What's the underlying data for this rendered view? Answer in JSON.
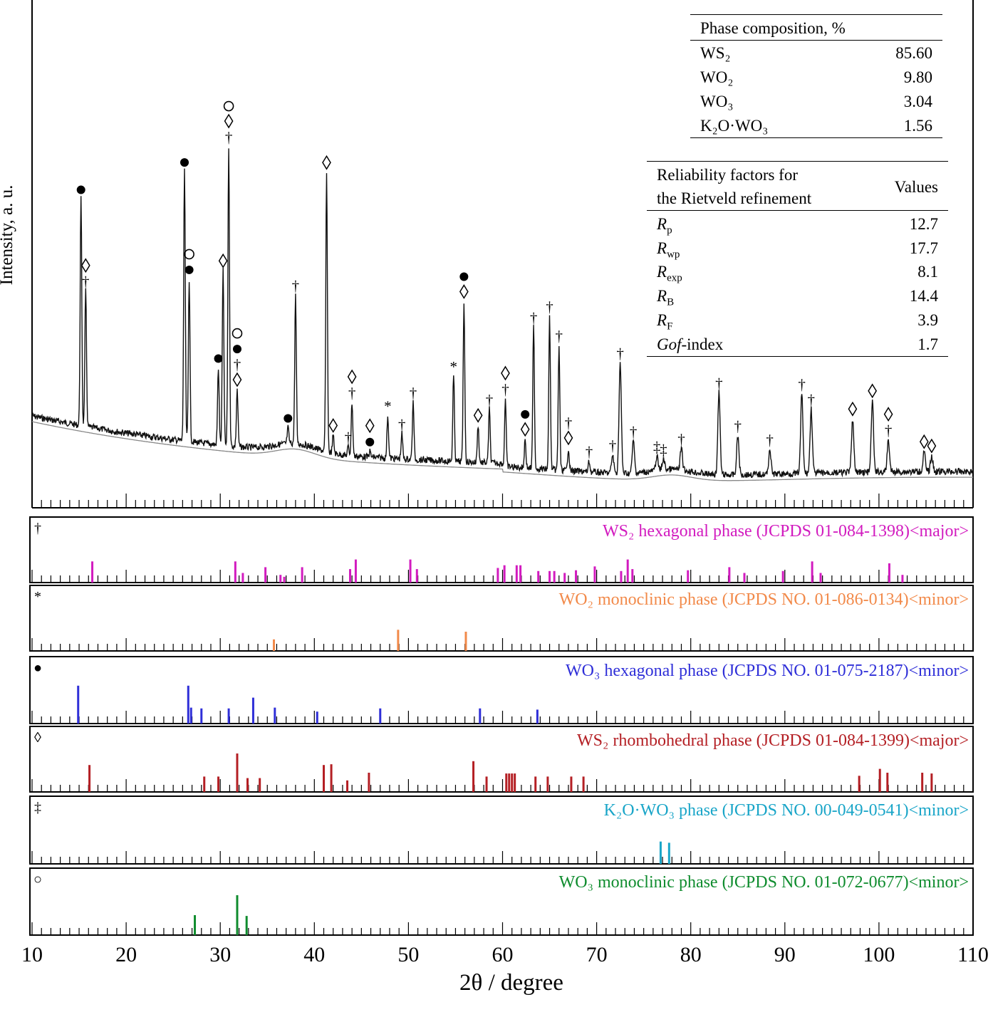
{
  "chart_data": {
    "type": "xrd-pattern",
    "xlabel": "2θ / degree",
    "ylabel": "Intensity, a. u.",
    "xlim": [
      10,
      110
    ],
    "xticks": [
      "10",
      "20",
      "30",
      "40",
      "50",
      "60",
      "70",
      "80",
      "90",
      "100",
      "110"
    ],
    "main_peaks": [
      {
        "x": 15.2,
        "h": 318,
        "markers": [
          "●"
        ]
      },
      {
        "x": 15.7,
        "h": 190,
        "markers": [
          "◊",
          "†"
        ]
      },
      {
        "x": 26.2,
        "h": 378,
        "markers": [
          "●"
        ]
      },
      {
        "x": 26.7,
        "h": 228,
        "markers": [
          "○",
          "●"
        ]
      },
      {
        "x": 29.8,
        "h": 108,
        "markers": [
          "●"
        ]
      },
      {
        "x": 30.3,
        "h": 245,
        "markers": [
          "◊"
        ]
      },
      {
        "x": 30.9,
        "h": 420,
        "markers": [
          "○",
          "◊",
          "†"
        ]
      },
      {
        "x": 31.8,
        "h": 80,
        "markers": [
          "○",
          "●",
          "†",
          "◊"
        ]
      },
      {
        "x": 37.2,
        "h": 22,
        "markers": [
          "●"
        ]
      },
      {
        "x": 38.0,
        "h": 208,
        "markers": [
          "†"
        ]
      },
      {
        "x": 41.3,
        "h": 392,
        "markers": [
          "◊"
        ]
      },
      {
        "x": 42.0,
        "h": 25,
        "markers": [
          "◊"
        ]
      },
      {
        "x": 43.6,
        "h": 12,
        "markers": [
          "†"
        ]
      },
      {
        "x": 44.0,
        "h": 75,
        "markers": [
          "◊",
          "†"
        ]
      },
      {
        "x": 45.9,
        "h": 8,
        "markers": [
          "◊",
          "●"
        ]
      },
      {
        "x": 47.8,
        "h": 60,
        "markers": [
          "*"
        ]
      },
      {
        "x": 49.3,
        "h": 35,
        "markers": [
          "†"
        ]
      },
      {
        "x": 50.5,
        "h": 80,
        "markers": [
          "†"
        ]
      },
      {
        "x": 54.8,
        "h": 120,
        "markers": [
          "*"
        ]
      },
      {
        "x": 55.9,
        "h": 225,
        "markers": [
          "●",
          "◊"
        ]
      },
      {
        "x": 57.4,
        "h": 52,
        "markers": [
          "◊"
        ]
      },
      {
        "x": 58.6,
        "h": 75,
        "markers": [
          "†"
        ]
      },
      {
        "x": 60.3,
        "h": 95,
        "markers": [
          "◊",
          "†"
        ]
      },
      {
        "x": 62.4,
        "h": 40,
        "markers": [
          "●",
          "◊"
        ]
      },
      {
        "x": 63.3,
        "h": 198,
        "markers": [
          "†"
        ]
      },
      {
        "x": 65.0,
        "h": 215,
        "markers": [
          "†"
        ]
      },
      {
        "x": 66.0,
        "h": 175,
        "markers": [
          "†"
        ]
      },
      {
        "x": 67.0,
        "h": 32,
        "markers": [
          "†",
          "◊"
        ]
      },
      {
        "x": 69.2,
        "h": 15,
        "markers": [
          "†"
        ]
      },
      {
        "x": 71.7,
        "h": 25,
        "markers": [
          "†"
        ]
      },
      {
        "x": 72.5,
        "h": 155,
        "markers": [
          "†"
        ]
      },
      {
        "x": 73.9,
        "h": 45,
        "markers": [
          "†"
        ]
      },
      {
        "x": 76.4,
        "h": 20,
        "markers": [
          "‡"
        ]
      },
      {
        "x": 77.1,
        "h": 15,
        "markers": [
          "‡"
        ]
      },
      {
        "x": 79.0,
        "h": 30,
        "markers": [
          "†"
        ]
      },
      {
        "x": 83.0,
        "h": 115,
        "markers": [
          "†"
        ]
      },
      {
        "x": 85.0,
        "h": 55,
        "markers": [
          "†"
        ]
      },
      {
        "x": 88.4,
        "h": 35,
        "markers": [
          "†"
        ]
      },
      {
        "x": 91.8,
        "h": 112,
        "markers": [
          "†"
        ]
      },
      {
        "x": 92.8,
        "h": 90,
        "markers": [
          "†"
        ]
      },
      {
        "x": 97.2,
        "h": 75,
        "markers": [
          "◊"
        ]
      },
      {
        "x": 99.3,
        "h": 100,
        "markers": [
          "◊"
        ]
      },
      {
        "x": 101.0,
        "h": 45,
        "markers": [
          "◊",
          "†"
        ]
      },
      {
        "x": 104.8,
        "h": 28,
        "markers": [
          "◊"
        ]
      },
      {
        "x": 105.6,
        "h": 22,
        "markers": [
          "◊"
        ]
      }
    ],
    "reference_panels": [
      {
        "symbol": "†",
        "label": "WS₂ hexagonal phase  (JCPDS 01-084-1398)<major>",
        "color": "#d21bbf",
        "lines": [
          [
            16.4,
            0.55
          ],
          [
            31.6,
            0.55
          ],
          [
            32.4,
            0.25
          ],
          [
            34.8,
            0.4
          ],
          [
            36.4,
            0.2
          ],
          [
            36.8,
            0.15
          ],
          [
            38.7,
            0.4
          ],
          [
            43.8,
            0.35
          ],
          [
            44.4,
            0.6
          ],
          [
            50.2,
            0.6
          ],
          [
            50.9,
            0.35
          ],
          [
            59.5,
            0.38
          ],
          [
            60.2,
            0.45
          ],
          [
            61.5,
            0.45
          ],
          [
            61.9,
            0.45
          ],
          [
            63.8,
            0.3
          ],
          [
            65.0,
            0.3
          ],
          [
            65.5,
            0.3
          ],
          [
            66.6,
            0.25
          ],
          [
            67.8,
            0.32
          ],
          [
            69.8,
            0.42
          ],
          [
            72.6,
            0.3
          ],
          [
            73.3,
            0.6
          ],
          [
            73.8,
            0.35
          ],
          [
            79.7,
            0.32
          ],
          [
            84.1,
            0.4
          ],
          [
            85.7,
            0.25
          ],
          [
            89.8,
            0.3
          ],
          [
            92.9,
            0.55
          ],
          [
            93.8,
            0.25
          ],
          [
            101.1,
            0.5
          ],
          [
            102.5,
            0.2
          ]
        ]
      },
      {
        "symbol": "*",
        "label": "WO₂ monoclinic phase (JCPDS NO. 01-086-0134)<minor>",
        "color": "#f28a4a",
        "lines": [
          [
            35.7,
            0.3
          ],
          [
            48.9,
            0.55
          ],
          [
            56.1,
            0.5
          ]
        ]
      },
      {
        "symbol": "●",
        "label": "WO₃ hexagonal phase (JCPDS NO. 01-075-2187)<minor>",
        "color": "#2f2fd8",
        "lines": [
          [
            14.9,
            0.95
          ],
          [
            26.6,
            0.95
          ],
          [
            26.9,
            0.4
          ],
          [
            28.0,
            0.38
          ],
          [
            30.9,
            0.38
          ],
          [
            33.5,
            0.65
          ],
          [
            35.8,
            0.4
          ],
          [
            40.3,
            0.3
          ],
          [
            47.0,
            0.38
          ],
          [
            57.6,
            0.38
          ],
          [
            63.7,
            0.35
          ]
        ]
      },
      {
        "symbol": "◊",
        "label": "WS₂ rhombohedral phase (JCPDS 01-084-1399)<major>",
        "color": "#b41f24",
        "lines": [
          [
            16.1,
            0.7
          ],
          [
            28.3,
            0.4
          ],
          [
            29.8,
            0.4
          ],
          [
            31.8,
            1.0
          ],
          [
            32.9,
            0.36
          ],
          [
            34.2,
            0.36
          ],
          [
            41.0,
            0.7
          ],
          [
            41.8,
            0.72
          ],
          [
            43.5,
            0.3
          ],
          [
            45.8,
            0.5
          ],
          [
            56.9,
            0.8
          ],
          [
            58.3,
            0.4
          ],
          [
            60.4,
            0.48
          ],
          [
            60.7,
            0.48
          ],
          [
            61.0,
            0.48
          ],
          [
            61.3,
            0.48
          ],
          [
            63.5,
            0.4
          ],
          [
            64.8,
            0.4
          ],
          [
            67.3,
            0.4
          ],
          [
            68.6,
            0.4
          ],
          [
            97.9,
            0.42
          ],
          [
            100.1,
            0.6
          ],
          [
            100.9,
            0.5
          ],
          [
            104.6,
            0.5
          ],
          [
            105.6,
            0.48
          ]
        ]
      },
      {
        "symbol": "‡",
        "label": "K₂O·WO₃ phase (JCPDS NO. 00-049-0541)<minor>",
        "color": "#19a5c8",
        "lines": [
          [
            76.8,
            0.55
          ],
          [
            77.7,
            0.52
          ]
        ]
      },
      {
        "symbol": "○",
        "label": "WO₃ monoclinic phase (JCPDS NO. 01-072-0677)<minor>",
        "color": "#0f8c2e",
        "lines": [
          [
            27.3,
            0.5
          ],
          [
            31.8,
            1.0
          ],
          [
            32.8,
            0.48
          ]
        ]
      }
    ]
  },
  "phase_table": {
    "header": "Phase composition, %",
    "rows": [
      {
        "phase": "WS₂",
        "value": "85.60"
      },
      {
        "phase": "WO₂",
        "value": "9.80"
      },
      {
        "phase": "WO₃",
        "value": "3.04"
      },
      {
        "phase": "K₂O·WO₃",
        "value": "1.56"
      }
    ]
  },
  "reliability_table": {
    "header_line1": "Reliability factors for",
    "header_line2": "the Rietveld refinement",
    "header_values": "Values",
    "rows": [
      {
        "factor": "R",
        "sub": "p",
        "suffix": "",
        "value": "12.7"
      },
      {
        "factor": "R",
        "sub": "wp",
        "suffix": "",
        "value": "17.7"
      },
      {
        "factor": "R",
        "sub": "exp",
        "suffix": "",
        "value": "8.1"
      },
      {
        "factor": "R",
        "sub": "B",
        "suffix": "",
        "value": "14.4"
      },
      {
        "factor": "R",
        "sub": "F",
        "suffix": "",
        "value": "3.9"
      },
      {
        "factor": "Gof",
        "sub": "",
        "suffix": "-index",
        "value": "1.7"
      }
    ]
  }
}
